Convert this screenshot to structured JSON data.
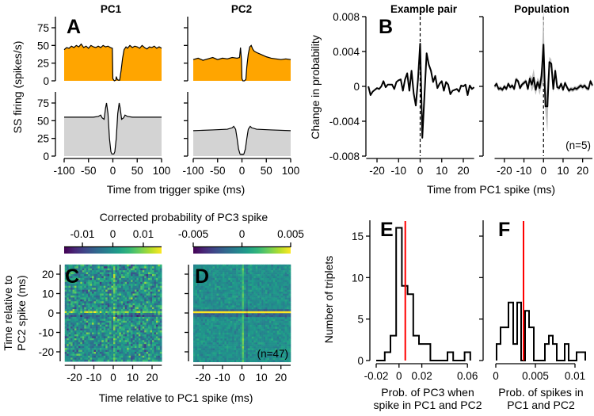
{
  "labels": {
    "panel_letters": {
      "A": "A",
      "B": "B",
      "C": "C",
      "D": "D",
      "E": "E",
      "F": "F"
    },
    "A_titles": [
      "PC1",
      "PC2"
    ],
    "A_ylabel": "SS firing (spikes/s)",
    "A_xlabel": "Time from trigger spike (ms)",
    "B_titles": [
      "Example pair",
      "Population"
    ],
    "B_ylabel": "Change in probability",
    "B_xlabel": "Time from PC1 spike (ms)",
    "B_n": "(n=5)",
    "CD_colorbar_title": "Corrected probability of PC3 spike",
    "CD_ylabel": [
      "Time relative to",
      "PC2 spike (ms)"
    ],
    "CD_xlabel": "Time relative to PC1 spike (ms)",
    "D_n": "(n=47)",
    "E_ylabel": "Number of triplets",
    "E_xlabel": [
      "Prob. of PC3 when",
      "spike in PC1 and PC2"
    ],
    "F_xlabel": [
      "Prob. of spikes in",
      "PC1 and PC2"
    ]
  },
  "colors": {
    "orange": "#ffa500",
    "gray_fill": "#d3d3d3",
    "band": "#bdbdbd",
    "red": "#ff0000",
    "line": "#000000"
  },
  "chart_data": [
    {
      "panel": "A",
      "title": "PC1",
      "type": "area",
      "fill": "#ffa500",
      "ylim": [
        0,
        75
      ],
      "xlim": [
        -100,
        100
      ],
      "yticks": [
        0,
        25,
        50,
        75
      ],
      "ytick_labels": [
        "0",
        "25",
        "50",
        "75"
      ],
      "x": [
        -100,
        -95,
        -90,
        -85,
        -80,
        -75,
        -70,
        -65,
        -60,
        -55,
        -50,
        -45,
        -40,
        -35,
        -30,
        -25,
        -20,
        -15,
        -10,
        -5,
        -1,
        0,
        3,
        6,
        7,
        9,
        11,
        14,
        17,
        20,
        23,
        27,
        30,
        35,
        40,
        45,
        50,
        55,
        60,
        65,
        70,
        75,
        80,
        85,
        90,
        95,
        100
      ],
      "y": [
        44,
        47,
        46,
        49,
        47,
        50,
        48,
        52,
        47,
        49,
        46,
        50,
        48,
        47,
        49,
        47,
        50,
        48,
        49,
        47,
        46,
        3,
        0,
        1,
        6,
        2,
        1,
        1,
        15,
        32,
        44,
        48,
        46,
        50,
        47,
        49,
        48,
        46,
        50,
        47,
        45,
        48,
        47,
        49,
        46,
        48,
        46
      ]
    },
    {
      "panel": "A",
      "title": "PC1",
      "type": "area",
      "fill": "#d3d3d3",
      "ylim": [
        0,
        75
      ],
      "xlim": [
        -100,
        100
      ],
      "yticks": [
        0,
        25,
        50,
        75
      ],
      "ytick_labels": [
        "0",
        "25",
        "50",
        "75"
      ],
      "xticks": [
        -100,
        -50,
        0,
        50,
        100
      ],
      "xtick_labels": [
        "-100",
        "-50",
        "0",
        "50",
        "100"
      ],
      "x": [
        -100,
        -80,
        -60,
        -40,
        -30,
        -25,
        -22,
        -18,
        -15,
        -13,
        -10,
        -7,
        -4,
        -2,
        0,
        2,
        4,
        7,
        10,
        13,
        15,
        18,
        22,
        25,
        30,
        40,
        60,
        80,
        100
      ],
      "y": [
        55,
        55,
        55,
        55,
        56,
        58,
        54,
        52,
        68,
        75,
        60,
        25,
        6,
        3,
        3,
        3,
        6,
        25,
        60,
        75,
        68,
        52,
        54,
        58,
        56,
        55,
        55,
        55,
        55
      ]
    },
    {
      "panel": "A",
      "title": "PC2",
      "type": "area",
      "fill": "#ffa500",
      "ylim": [
        0,
        75
      ],
      "xlim": [
        -100,
        100
      ],
      "yticks": [
        0,
        25,
        50,
        75
      ],
      "x": [
        -100,
        -90,
        -80,
        -70,
        -60,
        -50,
        -40,
        -30,
        -20,
        -10,
        -5,
        -3,
        -1,
        0,
        2,
        5,
        8,
        10,
        13,
        16,
        19,
        22,
        25,
        30,
        40,
        50,
        60,
        70,
        80,
        90,
        100
      ],
      "y": [
        30,
        32,
        29,
        31,
        33,
        30,
        32,
        31,
        33,
        32,
        33,
        47,
        30,
        3,
        0,
        0,
        2,
        20,
        38,
        48,
        50,
        45,
        42,
        40,
        37,
        34,
        32,
        31,
        30,
        31,
        30
      ]
    },
    {
      "panel": "A",
      "title": "PC2",
      "type": "area",
      "fill": "#d3d3d3",
      "ylim": [
        0,
        75
      ],
      "xlim": [
        -100,
        100
      ],
      "yticks": [
        0,
        25,
        50,
        75
      ],
      "xticks": [
        -100,
        -50,
        0,
        50,
        100
      ],
      "xtick_labels": [
        "-100",
        "-50",
        "0",
        "50",
        "100"
      ],
      "x": [
        -100,
        -60,
        -30,
        -20,
        -17,
        -13,
        -10,
        -7,
        -4,
        -2,
        0,
        2,
        4,
        7,
        10,
        13,
        17,
        20,
        30,
        60,
        100
      ],
      "y": [
        36,
        37,
        38,
        40,
        42,
        38,
        25,
        10,
        3,
        2,
        3,
        2,
        3,
        10,
        25,
        38,
        42,
        40,
        38,
        37,
        36
      ]
    },
    {
      "panel": "B",
      "title": "Example pair",
      "type": "line",
      "xlim": [
        -25,
        25
      ],
      "ylim": [
        -0.008,
        0.008
      ],
      "yticks": [
        -0.008,
        -0.004,
        0,
        0.004,
        0.008
      ],
      "ytick_labels": [
        "-0.008",
        "-0.004",
        "0",
        "0.004",
        "0.008"
      ],
      "xticks": [
        -20,
        -10,
        0,
        10,
        20
      ],
      "xtick_labels": [
        "-20",
        "-10",
        "0",
        "10",
        "20"
      ],
      "x_start": -24,
      "x_step": 1,
      "y": [
        0,
        -0.001,
        -0.0006,
        -0.0004,
        -0.0002,
        -0.0003,
        0,
        0.0006,
        -0.0001,
        0.0002,
        0.0002,
        0.0002,
        -0.0003,
        0.0005,
        0.0007,
        0.0008,
        -0.0005,
        0.0008,
        0.0015,
        -0.0005,
        0.0018,
        -0.0008,
        -0.0022,
        0.0008,
        0.0049,
        -0.0059,
        -0.001,
        0.0038,
        0.0025,
        0.0018,
        0.0005,
        0.0012,
        -0.0002,
        0.0003,
        0.0006,
        -0.0005,
        0.0005,
        0.0002,
        -0.0009,
        -0.0005,
        -0.0004,
        -0.0003,
        -0.0006,
        0.0001,
        0,
        0.0002,
        -0.001,
        0.0001,
        -0.0003,
        -0.0001
      ]
    },
    {
      "panel": "B",
      "title": "Population",
      "type": "line",
      "xlim": [
        -25,
        25
      ],
      "ylim": [
        -0.008,
        0.008
      ],
      "yticks": [
        -0.008,
        -0.004,
        0,
        0.004,
        0.008
      ],
      "xticks": [
        -20,
        -10,
        0,
        10,
        20
      ],
      "xtick_labels": [
        "-20",
        "-10",
        "0",
        "10",
        "20"
      ],
      "x_start": -25,
      "x_step": 1,
      "y": [
        0,
        0.0003,
        -0.0003,
        -0.0002,
        -0.0004,
        0,
        -0.0003,
        0.0003,
        -0.0001,
        0.0001,
        -0.0003,
        0.0008,
        0.0006,
        -0.0002,
        0.0002,
        0.0004,
        0.0006,
        -0.0003,
        0.0009,
        0.0002,
        0.001,
        -0.0004,
        0.0005,
        -0.0002,
        0.0012,
        0.0048,
        -0.0023,
        -0.0023,
        0.0028,
        0.0026,
        -0.0003,
        0.0018,
        -0.0001,
        -0.0002,
        0.0003,
        -0.0004,
        0.0004,
        -0.0001,
        -0.0005,
        -0.0003,
        -0.0004,
        -0.0002,
        -0.0003,
        -0.0001,
        0.0001,
        -0.0001,
        0.0001,
        -0.0002,
        -0.0003,
        0.0006,
        0.0001
      ],
      "sem": [
        0.00025,
        0.00025,
        0.00025,
        0.00025,
        0.00025,
        0.00025,
        0.00025,
        0.00025,
        0.00025,
        0.00025,
        0.00025,
        0.00025,
        0.00025,
        0.00025,
        0.00025,
        0.00025,
        0.00025,
        0.00025,
        0.0004,
        0.0008,
        0.001,
        0.0006,
        0.0005,
        0.0008,
        0.0012,
        0.0042,
        0.0008,
        0.003,
        0.0006,
        0.0005,
        0.0004,
        0.0004,
        0.00025,
        0.00025,
        0.00025,
        0.00025,
        0.00025,
        0.00025,
        0.00025,
        0.00025,
        0.00025,
        0.00025,
        0.00025,
        0.00025,
        0.00025,
        0.00025,
        0.00025,
        0.00025,
        0.00025,
        0.00025,
        0.00025
      ]
    },
    {
      "panel": "C",
      "type": "heatmap",
      "xlim": [
        -25,
        25
      ],
      "ylim": [
        -25,
        25
      ],
      "color_range": [
        -0.016,
        0.016
      ],
      "colorbar_ticks": [
        -0.01,
        0,
        0.01
      ],
      "colorbar_tick_labels": [
        "-0.01",
        "0",
        "0.01"
      ],
      "yticks": [
        -20,
        -10,
        0,
        10,
        20
      ],
      "ytick_labels": [
        "-20",
        "-10",
        "0",
        "10",
        "20"
      ],
      "xticks": [
        -20,
        -10,
        0,
        10,
        20
      ],
      "xtick_labels": [
        "-20",
        "-10",
        "0",
        "10",
        "20"
      ],
      "noise_sd": 0.006,
      "seed": 7,
      "features": [
        {
          "axis": "x",
          "at": 0,
          "value": 0.006
        },
        {
          "axis": "y",
          "at": 0,
          "value": 0.008
        },
        {
          "axis": "y",
          "at": -2,
          "value": -0.007
        }
      ]
    },
    {
      "panel": "D",
      "type": "heatmap",
      "xlim": [
        -25,
        25
      ],
      "ylim": [
        -25,
        25
      ],
      "color_range": [
        -0.005,
        0.005
      ],
      "colorbar_ticks": [
        -0.005,
        0,
        0.005
      ],
      "colorbar_tick_labels": [
        "-0.005",
        "0",
        "0.005"
      ],
      "yticks": [
        -20,
        -10,
        0,
        10,
        20
      ],
      "xticks": [
        -20,
        -10,
        0,
        10,
        20
      ],
      "xtick_labels": [
        "-20",
        "-10",
        "0",
        "10",
        "20"
      ],
      "noise_sd": 0.0007,
      "seed": 11,
      "features": [
        {
          "axis": "x",
          "at": 0,
          "value": 0.0022
        },
        {
          "axis": "x",
          "at": 2,
          "value": -0.0009
        },
        {
          "axis": "y",
          "at": 0,
          "value": 0.0058
        },
        {
          "axis": "y",
          "at": 1,
          "value": -0.0018
        },
        {
          "axis": "y",
          "at": -1,
          "value": -0.0018
        },
        {
          "axis": "y",
          "at": -2,
          "value": -0.0015
        }
      ]
    },
    {
      "panel": "E",
      "type": "histogram",
      "xlim": [
        -0.02,
        0.0625
      ],
      "ylim": [
        0,
        16.7
      ],
      "yticks": [
        0,
        5,
        10,
        15
      ],
      "ytick_labels": [
        "0",
        "5",
        "10",
        "15"
      ],
      "xticks": [
        -0.02,
        0,
        0.02,
        0.06
      ],
      "xtick_labels": [
        "-0.02",
        "0",
        "0.02",
        "0.06"
      ],
      "bin_edges": [
        -0.02,
        -0.0125,
        -0.0075,
        -0.0025,
        0.0025,
        0.0075,
        0.0125,
        0.0175,
        0.0225,
        0.0275,
        0.0425,
        0.0475,
        0.0575,
        0.0625
      ],
      "counts": [
        0,
        1,
        3,
        16,
        9,
        8,
        3,
        2,
        2,
        0,
        1,
        0,
        1
      ],
      "reference_line": 0.0055
    },
    {
      "panel": "F",
      "type": "histogram",
      "xlim": [
        0,
        0.0113
      ],
      "ylim": [
        0,
        16.7
      ],
      "yticks": [
        0,
        5,
        10,
        15
      ],
      "xticks": [
        0,
        0.005,
        0.01
      ],
      "xtick_labels": [
        "0",
        "0.005",
        "0.01"
      ],
      "bin_edges": [
        0.0001,
        0.0006,
        0.0011,
        0.0016,
        0.0022,
        0.0027,
        0.0032,
        0.0037,
        0.0042,
        0.0048,
        0.0062,
        0.0067,
        0.0072,
        0.0077,
        0.0087,
        0.0092,
        0.0102,
        0.0113
      ],
      "counts": [
        2,
        4,
        4,
        7,
        2,
        7,
        0,
        6,
        4,
        0,
        2,
        3,
        2,
        0,
        2,
        0,
        1
      ],
      "reference_line": 0.0035
    }
  ]
}
